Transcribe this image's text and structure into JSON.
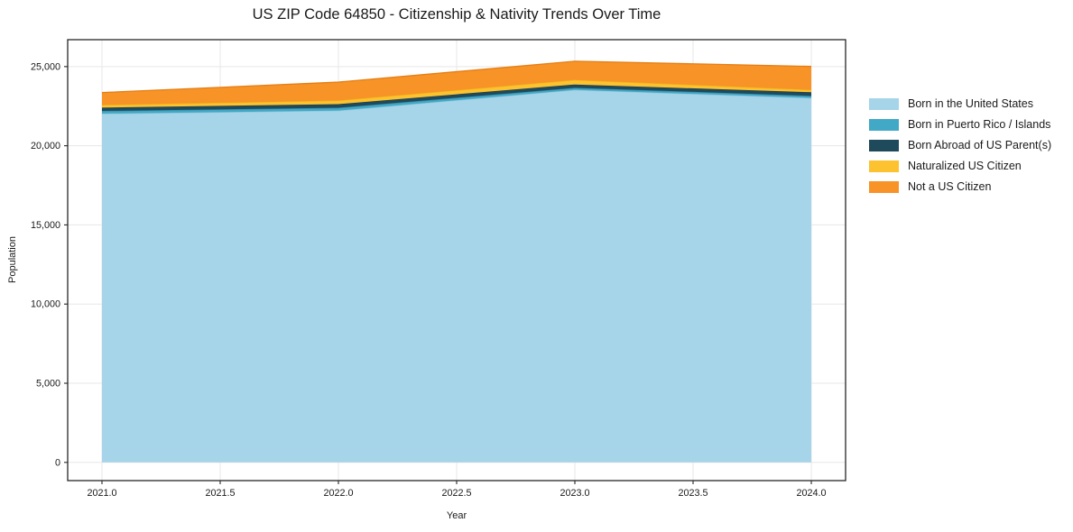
{
  "colors": {
    "background": "#ffffff",
    "text": "#1a1a1a",
    "grid": "#e7e7e7",
    "spine": "#262626"
  },
  "chart_data": {
    "type": "area",
    "stacked": true,
    "title": "US ZIP Code 64850 - Citizenship & Nativity Trends Over Time",
    "xlabel": "Year",
    "ylabel": "Population",
    "grid": true,
    "legend_position": "right-outside",
    "x": [
      2021,
      2022,
      2023,
      2024
    ],
    "series": [
      {
        "name": "Born in the United States",
        "color": "#a6d4e8",
        "edge": "#8fc3db",
        "values": [
          22030,
          22220,
          23530,
          23020
        ]
      },
      {
        "name": "Born in Puerto Rico / Islands",
        "color": "#41a9c6",
        "edge": "#338ba5",
        "values": [
          170,
          180,
          130,
          130
        ]
      },
      {
        "name": "Born Abroad of US Parent(s)",
        "color": "#1f4a5c",
        "edge": "#1a3f50",
        "values": [
          210,
          230,
          210,
          230
        ]
      },
      {
        "name": "Naturalized US Citizen",
        "color": "#fcc22f",
        "edge": "#f0b21c",
        "values": [
          170,
          230,
          290,
          150
        ]
      },
      {
        "name": "Not a US Citizen",
        "color": "#f79327",
        "edge": "#e67e12",
        "values": [
          780,
          1160,
          1180,
          1480
        ]
      }
    ],
    "totals": [
      23360,
      24020,
      25340,
      25010
    ],
    "xlim": [
      2020.855,
      2024.145
    ],
    "ylim": [
      -1150,
      26700
    ],
    "xticks": [
      2021.0,
      2021.5,
      2022.0,
      2022.5,
      2023.0,
      2023.5,
      2024.0
    ],
    "xtick_labels": [
      "2021.0",
      "2021.5",
      "2022.0",
      "2022.5",
      "2023.0",
      "2023.5",
      "2024.0"
    ],
    "yticks": [
      0,
      5000,
      10000,
      15000,
      20000,
      25000
    ],
    "ytick_labels": [
      "0",
      "5,000",
      "10,000",
      "15,000",
      "20,000",
      "25,000"
    ]
  }
}
